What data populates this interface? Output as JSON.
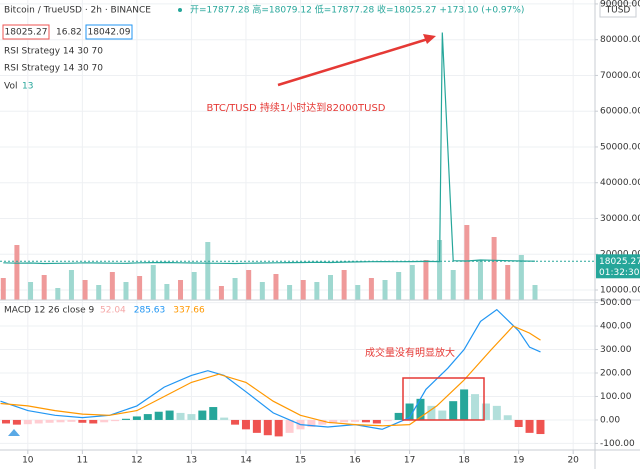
{
  "header": {
    "symbol": "Bitcoin / TrueUSD · 2h · BINANCE",
    "ohlc": "开=17877.28 高=18079.12 低=17877.28 收=18025.27 +173.10 (+0.97%)",
    "boxes": [
      "18025.27",
      "16.82",
      "18042.09"
    ],
    "indicators": [
      "RSI Strategy 14 30 70",
      "RSI Strategy 14 30 70"
    ],
    "vol_name": "Vol",
    "vol_value": "13",
    "currency": "TUSD",
    "countdown": "01:32:30"
  },
  "chart_data": [
    {
      "type": "line",
      "annotation": "BTC/TUSD 持续1小时达到82000TUSD",
      "xlim": [
        9.49,
        20.4
      ],
      "ylim": [
        7200,
        91100
      ],
      "yticks": [
        {
          "value": 10000,
          "label": "10000.00"
        },
        {
          "value": 20000,
          "label": "20000.00"
        },
        {
          "value": 30000,
          "label": "30000.00"
        },
        {
          "value": 40000,
          "label": "40000.00"
        },
        {
          "value": 50000,
          "label": "50000.00"
        },
        {
          "value": 60000,
          "label": "60000.00"
        },
        {
          "value": 70000,
          "label": "70000.00"
        },
        {
          "value": 80000,
          "label": "80000.00"
        },
        {
          "value": 90000,
          "label": "90000.00"
        }
      ],
      "last_price": 18025.27,
      "grid": true,
      "series": [
        {
          "color": "#26a69a",
          "x": [
            9.55,
            9.8,
            10.05,
            10.3,
            10.55,
            10.8,
            11.05,
            11.3,
            11.55,
            11.8,
            12.05,
            12.3,
            12.55,
            12.8,
            13.05,
            13.3,
            13.55,
            13.8,
            14.05,
            14.3,
            14.55,
            14.8,
            15.05,
            15.3,
            15.55,
            15.8,
            16.05,
            16.3,
            16.55,
            16.8,
            17.05,
            17.3,
            17.55,
            17.6,
            17.8,
            18.05,
            18.3,
            18.55,
            18.8,
            19.05,
            19.3
          ],
          "values": [
            17600,
            17500,
            17550,
            17400,
            17450,
            17500,
            17600,
            17550,
            17500,
            17450,
            17600,
            17650,
            17700,
            17600,
            17550,
            17500,
            17450,
            17400,
            17500,
            17550,
            17600,
            17650,
            17700,
            17750,
            17700,
            17800,
            17850,
            17900,
            17950,
            17900,
            17950,
            18000,
            17950,
            82000,
            18200,
            18100,
            18400,
            18300,
            18200,
            18100,
            18050
          ]
        }
      ],
      "volume": {
        "vlim": [
          0,
          300
        ],
        "x": [
          9.55,
          9.8,
          10.05,
          10.3,
          10.55,
          10.8,
          11.05,
          11.3,
          11.55,
          11.8,
          12.05,
          12.3,
          12.55,
          12.8,
          13.05,
          13.3,
          13.55,
          13.8,
          14.05,
          14.3,
          14.55,
          14.8,
          15.05,
          15.3,
          15.55,
          15.8,
          16.05,
          16.3,
          16.55,
          16.8,
          17.05,
          17.3,
          17.55,
          17.8,
          18.05,
          18.3,
          18.55,
          18.8,
          19.05,
          19.3
        ],
        "values": [
          22,
          55,
          18,
          25,
          12,
          30,
          20,
          15,
          28,
          18,
          24,
          35,
          16,
          20,
          28,
          58,
          14,
          22,
          30,
          18,
          26,
          15,
          20,
          18,
          25,
          30,
          15,
          22,
          20,
          28,
          35,
          40,
          60,
          30,
          75,
          40,
          63,
          35,
          45,
          15
        ],
        "colors": [
          "#ef9a9a",
          "#ef9a9a",
          "#9fd8d0",
          "#ef9a9a",
          "#9fd8d0",
          "#9fd8d0",
          "#ef9a9a",
          "#9fd8d0",
          "#ef9a9a",
          "#9fd8d0",
          "#ef9a9a",
          "#9fd8d0",
          "#9fd8d0",
          "#ef9a9a",
          "#9fd8d0",
          "#9fd8d0",
          "#ef9a9a",
          "#9fd8d0",
          "#ef9a9a",
          "#9fd8d0",
          "#ef9a9a",
          "#9fd8d0",
          "#ef9a9a",
          "#9fd8d0",
          "#9fd8d0",
          "#ef9a9a",
          "#9fd8d0",
          "#ef9a9a",
          "#9fd8d0",
          "#9fd8d0",
          "#9fd8d0",
          "#ef9a9a",
          "#9fd8d0",
          "#9fd8d0",
          "#ef9a9a",
          "#9fd8d0",
          "#ef9a9a",
          "#ef9a9a",
          "#9fd8d0",
          "#9fd8d0"
        ]
      }
    },
    {
      "type": "bar",
      "title": "MACD 12 26 close 9",
      "value_labels": [
        "52.04",
        "285.63",
        "337.66"
      ],
      "label_colors": [
        "#f4a7a7",
        "#2196f3",
        "#ff9800"
      ],
      "annotation": "成交量没有明显放大",
      "xlim": [
        9.49,
        20.4
      ],
      "ylim": [
        -128,
        511
      ],
      "xticks": [
        10,
        11,
        12,
        13,
        14,
        15,
        16,
        17,
        18,
        19,
        20
      ],
      "yticks": [
        {
          "value": -100,
          "label": "-100.00"
        },
        {
          "value": 0,
          "label": "0.00"
        },
        {
          "value": 100,
          "label": "100.00"
        },
        {
          "value": 200,
          "label": "200.00"
        },
        {
          "value": 300,
          "label": "300.00"
        },
        {
          "value": 400,
          "label": "400.00"
        },
        {
          "value": 500,
          "label": "500.00"
        }
      ],
      "histogram": {
        "x": [
          9.6,
          9.8,
          10.0,
          10.2,
          10.4,
          10.6,
          10.8,
          11.0,
          11.2,
          11.4,
          11.6,
          11.8,
          12.0,
          12.2,
          12.4,
          12.6,
          12.8,
          13.0,
          13.2,
          13.4,
          13.6,
          13.8,
          14.0,
          14.2,
          14.4,
          14.6,
          14.8,
          15.0,
          15.2,
          15.4,
          15.6,
          15.8,
          16.0,
          16.2,
          16.4,
          16.6,
          16.8,
          17.0,
          17.2,
          17.4,
          17.6,
          17.8,
          18.0,
          18.2,
          18.4,
          18.6,
          18.8,
          19.0,
          19.2,
          19.4
        ],
        "values": [
          -15,
          -20,
          -18,
          -15,
          -12,
          -10,
          -8,
          -12,
          -15,
          -10,
          -5,
          5,
          15,
          25,
          35,
          40,
          30,
          25,
          40,
          55,
          10,
          -20,
          -40,
          -55,
          -65,
          -70,
          -55,
          -40,
          -30,
          -20,
          -15,
          -10,
          -8,
          -10,
          -15,
          -5,
          30,
          70,
          90,
          60,
          40,
          80,
          130,
          110,
          70,
          60,
          20,
          -30,
          -55,
          -60
        ]
      },
      "series": [
        {
          "color": "#2196f3",
          "x": [
            9.5,
            10,
            10.5,
            11,
            11.5,
            12,
            12.5,
            13,
            13.3,
            13.6,
            14,
            14.5,
            15,
            15.5,
            16,
            16.5,
            17,
            17.3,
            17.7,
            18,
            18.3,
            18.6,
            19,
            19.2,
            19.4
          ],
          "values": [
            80,
            40,
            20,
            10,
            20,
            60,
            140,
            190,
            210,
            190,
            120,
            30,
            -20,
            -30,
            -20,
            -40,
            10,
            130,
            220,
            300,
            420,
            470,
            380,
            310,
            290
          ]
        },
        {
          "color": "#ff9800",
          "x": [
            9.5,
            10,
            10.5,
            11,
            11.5,
            12,
            12.5,
            13,
            13.5,
            14,
            14.5,
            15,
            15.5,
            16,
            16.5,
            17,
            17.5,
            18,
            18.5,
            18.9,
            19.2,
            19.4
          ],
          "values": [
            70,
            60,
            40,
            25,
            20,
            40,
            100,
            160,
            195,
            160,
            80,
            20,
            -10,
            -20,
            -25,
            -20,
            60,
            170,
            300,
            400,
            370,
            340
          ]
        }
      ]
    }
  ]
}
